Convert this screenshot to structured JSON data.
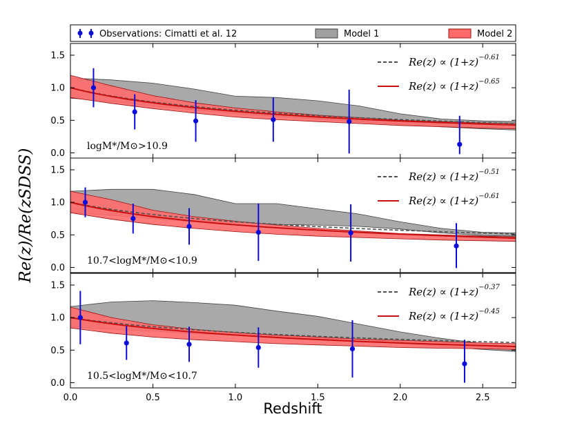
{
  "chart_data": {
    "type": "line",
    "xlabel": "Redshift",
    "ylabel": "R_e(z)/R_e(z_SDSS)",
    "ylabel_display": "Re(z)/Re(zSDSS)",
    "xlim": [
      0,
      2.7
    ],
    "ylim": [
      -0.08,
      1.68
    ],
    "x_ticks": [
      "0.0",
      "0.5",
      "1.0",
      "1.5",
      "2.0",
      "2.5"
    ],
    "x_tick_values": [
      0.0,
      0.5,
      1.0,
      1.5,
      2.0,
      2.5
    ],
    "y_ticks": [
      "0.0",
      "0.5",
      "1.0",
      "1.5"
    ],
    "y_tick_values": [
      0.0,
      0.5,
      1.0,
      1.5
    ],
    "legend": {
      "placement": "top",
      "entries": [
        {
          "label": "Observations: Cimatti et al. 12",
          "type": "errorbar",
          "color": "#0b0bd9"
        },
        {
          "label": "Model 1",
          "type": "band",
          "color": "#999999"
        },
        {
          "label": "Model 2",
          "type": "band",
          "color": "#ff6e6e"
        }
      ]
    },
    "colors": {
      "obs": "#0b0bd9",
      "model1_fill": "#a0a0a0",
      "model1_edge": "#404040",
      "model2_fill": "#ff6b6b",
      "model2_edge": "#a01010",
      "fit1": "#505050",
      "fit2": "#c81010"
    },
    "panels": [
      {
        "label": "logM*/M⊙>10.9",
        "fits": [
          {
            "label": "Re(z) ∝ (1+z)",
            "exponent": -0.61,
            "exponent_text": "−0.61",
            "style": "dashed"
          },
          {
            "label": "Re(z) ∝ (1+z)",
            "exponent": -0.65,
            "exponent_text": "−0.65",
            "style": "solid"
          }
        ],
        "observations": [
          {
            "x": 0.14,
            "y": 1.0,
            "yerr_lo": 0.3,
            "yerr_hi": 0.3
          },
          {
            "x": 0.39,
            "y": 0.63,
            "yerr_lo": 0.27,
            "yerr_hi": 0.27
          },
          {
            "x": 0.76,
            "y": 0.49,
            "yerr_lo": 0.32,
            "yerr_hi": 0.32
          },
          {
            "x": 1.23,
            "y": 0.51,
            "yerr_lo": 0.34,
            "yerr_hi": 0.34
          },
          {
            "x": 1.69,
            "y": 0.48,
            "yerr_lo": 0.49,
            "yerr_hi": 0.49
          },
          {
            "x": 2.36,
            "y": 0.13,
            "yerr_lo": 0.15,
            "yerr_hi": 0.44
          }
        ],
        "model1": {
          "x": [
            0.0,
            0.25,
            0.5,
            0.75,
            1.0,
            1.25,
            1.5,
            1.75,
            2.0,
            2.25,
            2.5,
            2.7
          ],
          "lower": [
            0.84,
            0.79,
            0.72,
            0.66,
            0.6,
            0.56,
            0.52,
            0.48,
            0.44,
            0.4,
            0.37,
            0.35
          ],
          "upper": [
            1.15,
            1.12,
            1.07,
            0.98,
            0.87,
            0.85,
            0.8,
            0.72,
            0.6,
            0.52,
            0.49,
            0.48
          ]
        },
        "model2": {
          "x": [
            0.0,
            0.25,
            0.5,
            0.75,
            1.0,
            1.25,
            1.5,
            1.75,
            2.0,
            2.25,
            2.5,
            2.7
          ],
          "lower": [
            0.85,
            0.76,
            0.68,
            0.61,
            0.55,
            0.51,
            0.48,
            0.45,
            0.42,
            0.4,
            0.38,
            0.37
          ],
          "upper": [
            1.19,
            1.03,
            0.88,
            0.77,
            0.69,
            0.63,
            0.58,
            0.54,
            0.5,
            0.48,
            0.46,
            0.45
          ]
        }
      },
      {
        "label": "10.7<logM*/M⊙<10.9",
        "fits": [
          {
            "label": "Re(z) ∝ (1+z)",
            "exponent": -0.51,
            "exponent_text": "−0.51",
            "style": "dashed"
          },
          {
            "label": "Re(z) ∝ (1+z)",
            "exponent": -0.61,
            "exponent_text": "−0.61",
            "style": "solid"
          }
        ],
        "observations": [
          {
            "x": 0.09,
            "y": 1.0,
            "yerr_lo": 0.23,
            "yerr_hi": 0.23
          },
          {
            "x": 0.38,
            "y": 0.75,
            "yerr_lo": 0.23,
            "yerr_hi": 0.23
          },
          {
            "x": 0.72,
            "y": 0.63,
            "yerr_lo": 0.28,
            "yerr_hi": 0.28
          },
          {
            "x": 1.14,
            "y": 0.54,
            "yerr_lo": 0.44,
            "yerr_hi": 0.44
          },
          {
            "x": 1.7,
            "y": 0.53,
            "yerr_lo": 0.44,
            "yerr_hi": 0.44
          },
          {
            "x": 2.34,
            "y": 0.33,
            "yerr_lo": 0.34,
            "yerr_hi": 0.35
          }
        ],
        "model1": {
          "x": [
            0.0,
            0.25,
            0.5,
            0.75,
            1.0,
            1.25,
            1.5,
            1.75,
            2.0,
            2.25,
            2.5,
            2.7
          ],
          "lower": [
            0.84,
            0.8,
            0.75,
            0.7,
            0.69,
            0.66,
            0.65,
            0.63,
            0.59,
            0.53,
            0.49,
            0.48
          ],
          "upper": [
            1.17,
            1.2,
            1.2,
            1.12,
            0.98,
            0.98,
            0.9,
            0.82,
            0.7,
            0.6,
            0.54,
            0.53
          ]
        },
        "model2": {
          "x": [
            0.0,
            0.25,
            0.5,
            0.75,
            1.0,
            1.25,
            1.5,
            1.75,
            2.0,
            2.25,
            2.5,
            2.7
          ],
          "lower": [
            0.84,
            0.74,
            0.66,
            0.6,
            0.55,
            0.51,
            0.48,
            0.46,
            0.44,
            0.42,
            0.41,
            0.4
          ],
          "upper": [
            1.17,
            1.04,
            0.88,
            0.78,
            0.71,
            0.65,
            0.6,
            0.56,
            0.52,
            0.5,
            0.48,
            0.47
          ]
        }
      },
      {
        "label": "10.5<logM*/M⊙<10.7",
        "fits": [
          {
            "label": "Re(z) ∝ (1+z)",
            "exponent": -0.37,
            "exponent_text": "−0.37",
            "style": "dashed"
          },
          {
            "label": "Re(z) ∝ (1+z)",
            "exponent": -0.45,
            "exponent_text": "−0.45",
            "style": "solid"
          }
        ],
        "observations": [
          {
            "x": 0.06,
            "y": 1.0,
            "yerr_lo": 0.41,
            "yerr_hi": 0.41
          },
          {
            "x": 0.34,
            "y": 0.61,
            "yerr_lo": 0.26,
            "yerr_hi": 0.26
          },
          {
            "x": 0.72,
            "y": 0.59,
            "yerr_lo": 0.27,
            "yerr_hi": 0.27
          },
          {
            "x": 1.14,
            "y": 0.54,
            "yerr_lo": 0.31,
            "yerr_hi": 0.31
          },
          {
            "x": 1.71,
            "y": 0.52,
            "yerr_lo": 0.44,
            "yerr_hi": 0.44
          },
          {
            "x": 2.39,
            "y": 0.29,
            "yerr_lo": 0.29,
            "yerr_hi": 0.37
          }
        ],
        "model1": {
          "x": [
            0.0,
            0.25,
            0.5,
            0.75,
            1.0,
            1.25,
            1.5,
            1.75,
            2.0,
            2.25,
            2.5,
            2.7
          ],
          "lower": [
            0.86,
            0.82,
            0.79,
            0.75,
            0.73,
            0.71,
            0.68,
            0.64,
            0.6,
            0.56,
            0.51,
            0.48
          ],
          "upper": [
            1.17,
            1.24,
            1.26,
            1.23,
            1.19,
            1.1,
            1.02,
            0.9,
            0.78,
            0.68,
            0.6,
            0.56
          ]
        },
        "model2": {
          "x": [
            0.0,
            0.25,
            0.5,
            0.75,
            1.0,
            1.25,
            1.5,
            1.75,
            2.0,
            2.25,
            2.5,
            2.7
          ],
          "lower": [
            0.84,
            0.76,
            0.7,
            0.66,
            0.63,
            0.6,
            0.58,
            0.56,
            0.54,
            0.53,
            0.52,
            0.51
          ],
          "upper": [
            1.16,
            1.0,
            0.89,
            0.82,
            0.77,
            0.73,
            0.7,
            0.67,
            0.65,
            0.63,
            0.61,
            0.6
          ]
        }
      }
    ]
  }
}
